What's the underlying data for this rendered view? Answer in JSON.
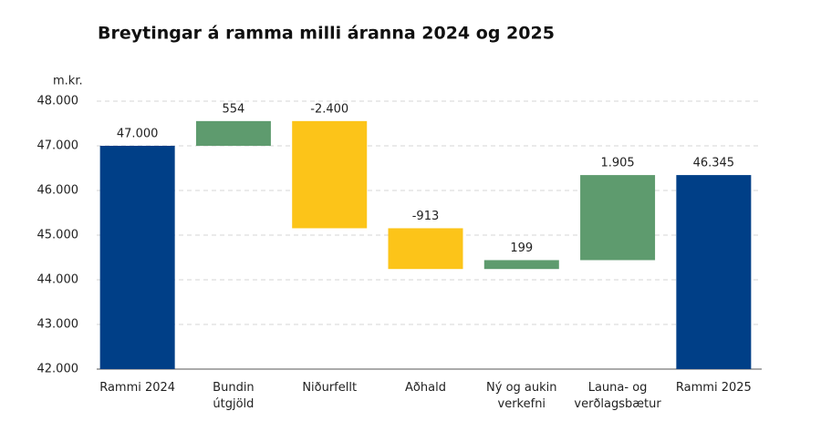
{
  "chart_data": {
    "type": "waterfall",
    "title": "Breytingar á ramma milli áranna 2024 og 2025",
    "y_unit_label": "m.kr.",
    "categories": [
      [
        "Rammi 2024"
      ],
      [
        "Bundin",
        "útgjöld"
      ],
      [
        "Niðurfellt"
      ],
      [
        "Aðhald"
      ],
      [
        "Ný og aukin",
        "verkefni"
      ],
      [
        "Launa- og",
        "verðlagsbætur"
      ],
      [
        "Rammi 2025"
      ]
    ],
    "measure": [
      "absolute",
      "relative",
      "relative",
      "relative",
      "relative",
      "relative",
      "total"
    ],
    "values": [
      47000,
      554,
      -2400,
      -913,
      199,
      1905,
      46345
    ],
    "value_labels": [
      "47.000",
      "554",
      "-2.400",
      "-913",
      "199",
      "1.905",
      "46.345"
    ],
    "total_color": "#003f87",
    "increase_color": "#5e9b6e",
    "decrease_color": "#fcc419",
    "ylim": [
      42000,
      48000
    ],
    "yticks": [
      {
        "value": 42000,
        "label": "42.000"
      },
      {
        "value": 43000,
        "label": "43.000"
      },
      {
        "value": 44000,
        "label": "44.000"
      },
      {
        "value": 45000,
        "label": "45.000"
      },
      {
        "value": 46000,
        "label": "46.000"
      },
      {
        "value": 47000,
        "label": "47.000"
      },
      {
        "value": 48000,
        "label": "48.000"
      }
    ],
    "grid": true
  }
}
